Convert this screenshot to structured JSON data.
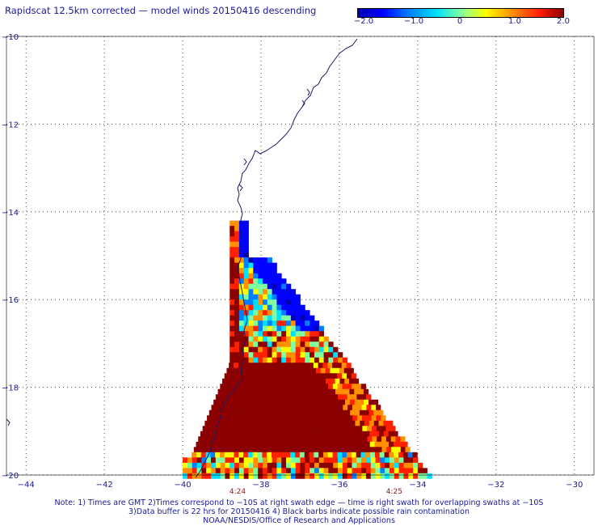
{
  "title": "Rapidscat 12.5km corrected — model winds 20150416 descending",
  "colorbar": {
    "labels": [
      "−2.0",
      "−1.0",
      "0",
      "1.0",
      "2.0"
    ],
    "colors": [
      "#0000b0",
      "#0000ff",
      "#0080ff",
      "#00e0ff",
      "#80ffa0",
      "#ffff00",
      "#ff9000",
      "#ff2000",
      "#8b0000"
    ]
  },
  "axes": {
    "x_ticks": [
      "−44",
      "−42",
      "−40",
      "−38",
      "−36",
      "−34",
      "−32",
      "−30"
    ],
    "y_ticks": [
      "−10",
      "−12",
      "−14",
      "−16",
      "−18",
      "−20"
    ],
    "lon_range": [
      -44.5,
      -29.5
    ],
    "lat_range": [
      -10,
      -20
    ],
    "grid": "dotted"
  },
  "time_labels": [
    {
      "text": "4:24",
      "lon": -38.6
    },
    {
      "text": "4:25",
      "lon": -34.6
    }
  ],
  "notes": [
    "Note: 1) Times are GMT 2)Times correspond to −10S at right swath edge — time is right swath for overlapping swaths at −10S",
    "3)Data buffer is 22 hrs for 20150416 4) Black barbs indicate possible rain contamination",
    "NOAA/NESDIS/Office of Research and Applications"
  ],
  "chart_data": {
    "type": "heatmap",
    "title": "Rapidscat 12.5km corrected — model winds 20150416 descending",
    "x_range": [
      -44.5,
      -29.5
    ],
    "y_range": [
      -20,
      -10
    ],
    "value_range": [
      -2.0,
      2.0
    ],
    "swath": {
      "description_bands": [
        {
          "lat_from": -14.2,
          "lat_to": -15.0,
          "lon_from": -38.8,
          "lon_to": -38.5,
          "value": 2.0
        },
        {
          "lat_from": -15.0,
          "lat_to": -16.5,
          "lon_from": -38.8,
          "lon_to": -36.6,
          "value": -1.0
        },
        {
          "lat_from": -16.5,
          "lat_to": -17.5,
          "lon_from": -38.8,
          "lon_to": -36.0,
          "value": 0.5
        },
        {
          "lat_from": -17.5,
          "lat_to": -19.5,
          "lon_from": -39.5,
          "lon_to": -34.5,
          "value": 2.0
        },
        {
          "lat_from": -19.5,
          "lat_to": -20.0,
          "lon_from": -40.0,
          "lon_to": -33.8,
          "value": 1.0
        }
      ]
    }
  }
}
